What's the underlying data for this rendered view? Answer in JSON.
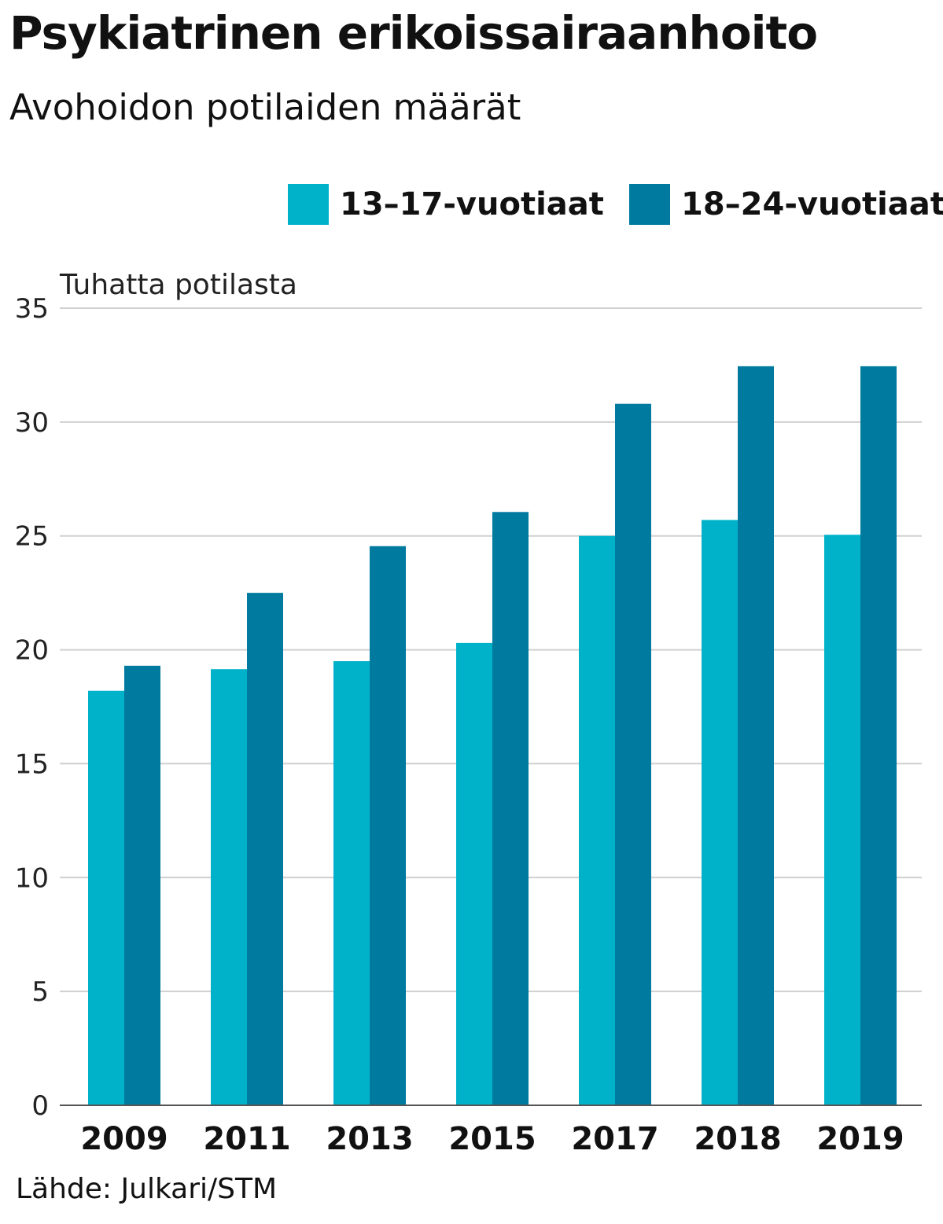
{
  "chart_data": {
    "type": "bar",
    "title": "Psykiatrinen erikoissairaanhoito",
    "subtitle": "Avohoidon potilaiden määrät",
    "ylabel": "Tuhatta potilasta",
    "xlabel": "",
    "categories": [
      "2009",
      "2011",
      "2013",
      "2015",
      "2017",
      "2018",
      "2019"
    ],
    "series": [
      {
        "name": "13–17-vuotiaat",
        "color": "#00b2c9",
        "values": [
          18.2,
          19.15,
          19.5,
          20.3,
          25.0,
          25.7,
          25.05
        ]
      },
      {
        "name": "18–24-vuotiaat",
        "color": "#007a9f",
        "values": [
          19.3,
          22.5,
          24.55,
          26.05,
          30.8,
          32.45,
          32.45
        ]
      }
    ],
    "ylim": [
      0,
      35
    ],
    "yticks": [
      0,
      5,
      10,
      15,
      20,
      25,
      30,
      35
    ],
    "grid": true,
    "legend_position": "top-right",
    "source": "Lähde: Julkari/STM"
  }
}
